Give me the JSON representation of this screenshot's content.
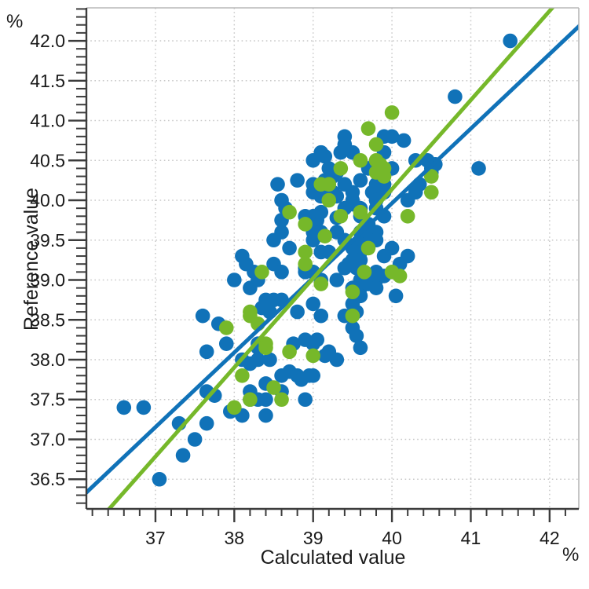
{
  "figure": {
    "type": "scatter-plot",
    "x_axis_title": "Calculated value",
    "y_axis_title": "Reference value",
    "x_unit": "%",
    "y_unit": "%"
  },
  "axes": {
    "x": {
      "label": "Calculated value",
      "unit": "%",
      "render_min": 36.124,
      "render_max": 42.37,
      "major_ticks": [
        37,
        38,
        39,
        40,
        41,
        42
      ],
      "tick_labels": [
        "37",
        "38",
        "39",
        "40",
        "41",
        "42"
      ],
      "minor_step": 0.2,
      "grid": true
    },
    "y": {
      "label": "Reference value",
      "unit": "%",
      "render_min": 36.128,
      "render_max": 42.414,
      "major_ticks": [
        36.5,
        37.0,
        37.5,
        38.0,
        38.5,
        39.0,
        39.5,
        40.0,
        40.5,
        41.0,
        41.5,
        42.0
      ],
      "tick_labels": [
        "36.5",
        "37.0",
        "37.5",
        "38.0",
        "38.5",
        "39.0",
        "39.5",
        "40.0",
        "40.5",
        "41.0",
        "41.5",
        "42.0"
      ],
      "minor_step": 0.1,
      "grid": true
    }
  },
  "chart_data": {
    "type": "scatter",
    "title": "",
    "xlabel": "Calculated value",
    "ylabel": "Reference value",
    "xlim": [
      36.12,
      42.37
    ],
    "ylim": [
      36.13,
      42.41
    ],
    "grid": "dotted",
    "legend": "none",
    "colors": {
      "blue": "#1072B8",
      "green": "#76B82A",
      "grid": "#c9c9c9",
      "axis": "#3c3c3c",
      "border": "#b8b8b8"
    },
    "series": [
      {
        "name": "blue-points",
        "color": "#1072B8",
        "points": [
          [
            41.5,
            42.0
          ],
          [
            40.8,
            41.3
          ],
          [
            41.1,
            40.4
          ],
          [
            39.4,
            40.8
          ],
          [
            39.9,
            40.8
          ],
          [
            40.0,
            40.8
          ],
          [
            40.15,
            40.75
          ],
          [
            39.4,
            40.7
          ],
          [
            39.35,
            40.6
          ],
          [
            39.5,
            40.6
          ],
          [
            39.9,
            40.6
          ],
          [
            39.1,
            40.6
          ],
          [
            39.15,
            40.55
          ],
          [
            40.3,
            40.5
          ],
          [
            40.45,
            40.5
          ],
          [
            40.55,
            40.45
          ],
          [
            39.0,
            40.5
          ],
          [
            40.5,
            40.4
          ],
          [
            40.5,
            40.35
          ],
          [
            39.7,
            40.4
          ],
          [
            40.0,
            40.4
          ],
          [
            39.2,
            40.4
          ],
          [
            39.3,
            40.35
          ],
          [
            39.25,
            40.3
          ],
          [
            38.8,
            40.25
          ],
          [
            39.15,
            40.25
          ],
          [
            38.55,
            40.2
          ],
          [
            39.0,
            40.2
          ],
          [
            39.4,
            40.2
          ],
          [
            39.6,
            40.25
          ],
          [
            39.8,
            40.2
          ],
          [
            39.9,
            40.2
          ],
          [
            40.35,
            40.2
          ],
          [
            39.75,
            40.1
          ],
          [
            40.3,
            40.1
          ],
          [
            40.2,
            40.0
          ],
          [
            39.25,
            40.1
          ],
          [
            39.5,
            40.1
          ],
          [
            39.9,
            40.1
          ],
          [
            39.3,
            40.05
          ],
          [
            39.1,
            40.05
          ],
          [
            39.0,
            40.1
          ],
          [
            38.6,
            40.0
          ],
          [
            39.5,
            40.0
          ],
          [
            39.8,
            40.0
          ],
          [
            38.65,
            39.9
          ],
          [
            39.4,
            39.9
          ],
          [
            39.1,
            39.85
          ],
          [
            39.5,
            39.95
          ],
          [
            39.6,
            39.9
          ],
          [
            38.9,
            39.8
          ],
          [
            39.0,
            39.8
          ],
          [
            39.3,
            39.78
          ],
          [
            39.6,
            39.8
          ],
          [
            39.8,
            39.9
          ],
          [
            39.9,
            39.8
          ],
          [
            39.05,
            39.75
          ],
          [
            38.6,
            39.75
          ],
          [
            38.6,
            39.6
          ],
          [
            39.0,
            39.7
          ],
          [
            39.0,
            39.6
          ],
          [
            39.1,
            39.6
          ],
          [
            39.3,
            39.6
          ],
          [
            39.6,
            39.6
          ],
          [
            39.7,
            39.7
          ],
          [
            39.8,
            39.6
          ],
          [
            39.7,
            39.55
          ],
          [
            39.8,
            39.5
          ],
          [
            39.6,
            39.45
          ],
          [
            38.5,
            39.5
          ],
          [
            38.7,
            39.4
          ],
          [
            39.0,
            39.5
          ],
          [
            39.1,
            39.35
          ],
          [
            39.2,
            39.35
          ],
          [
            39.4,
            39.5
          ],
          [
            39.5,
            39.4
          ],
          [
            39.6,
            39.35
          ],
          [
            39.9,
            39.3
          ],
          [
            40.0,
            39.4
          ],
          [
            40.2,
            39.3
          ],
          [
            40.1,
            39.2
          ],
          [
            38.1,
            39.3
          ],
          [
            38.15,
            39.2
          ],
          [
            38.25,
            39.1
          ],
          [
            38.3,
            39.0
          ],
          [
            38.0,
            39.0
          ],
          [
            38.2,
            38.9
          ],
          [
            38.5,
            39.2
          ],
          [
            38.6,
            39.1
          ],
          [
            38.9,
            39.15
          ],
          [
            38.9,
            39.1
          ],
          [
            39.0,
            39.1
          ],
          [
            39.1,
            39.0
          ],
          [
            39.3,
            39.0
          ],
          [
            39.4,
            39.15
          ],
          [
            39.45,
            39.2
          ],
          [
            39.5,
            39.25
          ],
          [
            39.6,
            39.25
          ],
          [
            39.55,
            39.15
          ],
          [
            39.8,
            39.1
          ],
          [
            39.85,
            39.05
          ],
          [
            39.6,
            39.0
          ],
          [
            39.7,
            39.0
          ],
          [
            39.8,
            39.0
          ],
          [
            39.9,
            39.05
          ],
          [
            40.05,
            38.8
          ],
          [
            39.5,
            38.9
          ],
          [
            39.6,
            38.9
          ],
          [
            39.6,
            38.8
          ],
          [
            39.5,
            38.7
          ],
          [
            39.55,
            38.6
          ],
          [
            39.7,
            38.95
          ],
          [
            39.8,
            38.9
          ],
          [
            38.4,
            38.75
          ],
          [
            38.5,
            38.75
          ],
          [
            38.6,
            38.75
          ],
          [
            38.35,
            38.65
          ],
          [
            38.8,
            38.6
          ],
          [
            39.0,
            38.7
          ],
          [
            39.1,
            38.55
          ],
          [
            39.4,
            38.55
          ],
          [
            39.5,
            38.55
          ],
          [
            37.6,
            38.55
          ],
          [
            37.8,
            38.45
          ],
          [
            38.45,
            38.6
          ],
          [
            39.5,
            38.4
          ],
          [
            39.55,
            38.3
          ],
          [
            39.6,
            38.15
          ],
          [
            37.9,
            38.2
          ],
          [
            38.3,
            38.2
          ],
          [
            38.3,
            38.15
          ],
          [
            38.75,
            38.2
          ],
          [
            38.9,
            38.25
          ],
          [
            39.0,
            38.2
          ],
          [
            39.05,
            38.25
          ],
          [
            39.15,
            38.05
          ],
          [
            39.2,
            38.1
          ],
          [
            39.3,
            38.0
          ],
          [
            37.65,
            38.1
          ],
          [
            38.1,
            38.0
          ],
          [
            38.2,
            37.95
          ],
          [
            38.3,
            38.0
          ],
          [
            38.45,
            38.0
          ],
          [
            38.7,
            37.85
          ],
          [
            38.8,
            37.8
          ],
          [
            38.85,
            37.75
          ],
          [
            38.95,
            37.8
          ],
          [
            39.0,
            37.8
          ],
          [
            38.6,
            37.8
          ],
          [
            38.4,
            37.7
          ],
          [
            38.6,
            37.6
          ],
          [
            38.2,
            37.6
          ],
          [
            38.2,
            37.5
          ],
          [
            38.3,
            37.5
          ],
          [
            38.4,
            37.5
          ],
          [
            38.9,
            37.5
          ],
          [
            37.65,
            37.6
          ],
          [
            37.75,
            37.55
          ],
          [
            38.1,
            37.3
          ],
          [
            38.4,
            37.3
          ],
          [
            37.95,
            37.35
          ],
          [
            36.6,
            37.4
          ],
          [
            36.85,
            37.4
          ],
          [
            37.3,
            37.2
          ],
          [
            37.65,
            37.2
          ],
          [
            37.5,
            37.0
          ],
          [
            37.35,
            36.8
          ],
          [
            37.05,
            36.5
          ]
        ]
      },
      {
        "name": "green-points",
        "color": "#76B82A",
        "points": [
          [
            40.0,
            41.1
          ],
          [
            39.7,
            40.9
          ],
          [
            39.8,
            40.7
          ],
          [
            39.8,
            40.5
          ],
          [
            39.85,
            40.45
          ],
          [
            39.8,
            40.35
          ],
          [
            39.9,
            40.4
          ],
          [
            39.9,
            40.3
          ],
          [
            39.6,
            40.5
          ],
          [
            39.35,
            40.4
          ],
          [
            39.1,
            40.2
          ],
          [
            39.2,
            40.2
          ],
          [
            40.5,
            40.3
          ],
          [
            40.5,
            40.1
          ],
          [
            40.2,
            39.8
          ],
          [
            38.7,
            39.85
          ],
          [
            39.2,
            40.0
          ],
          [
            39.35,
            39.8
          ],
          [
            39.6,
            39.85
          ],
          [
            38.9,
            39.7
          ],
          [
            39.15,
            39.55
          ],
          [
            38.9,
            39.35
          ],
          [
            38.35,
            39.1
          ],
          [
            38.9,
            39.2
          ],
          [
            39.7,
            39.4
          ],
          [
            39.65,
            39.1
          ],
          [
            40.0,
            39.1
          ],
          [
            40.1,
            39.05
          ],
          [
            39.5,
            38.85
          ],
          [
            39.5,
            38.55
          ],
          [
            39.1,
            38.95
          ],
          [
            38.2,
            38.6
          ],
          [
            38.2,
            38.55
          ],
          [
            37.9,
            38.4
          ],
          [
            38.4,
            38.2
          ],
          [
            38.3,
            38.45
          ],
          [
            38.4,
            38.15
          ],
          [
            38.7,
            38.1
          ],
          [
            39.0,
            38.05
          ],
          [
            38.1,
            37.8
          ],
          [
            38.5,
            37.65
          ],
          [
            38.6,
            37.5
          ],
          [
            38.0,
            37.4
          ],
          [
            38.2,
            37.5
          ]
        ]
      }
    ],
    "lines": [
      {
        "name": "regression-line-blue",
        "color": "#1072B8",
        "x1": 36.12,
        "y1": 36.33,
        "x2": 42.39,
        "y2": 42.2
      },
      {
        "name": "regression-line-green",
        "color": "#76B82A",
        "x1": 36.37,
        "y1": 36.08,
        "x2": 42.04,
        "y2": 42.42
      }
    ]
  }
}
